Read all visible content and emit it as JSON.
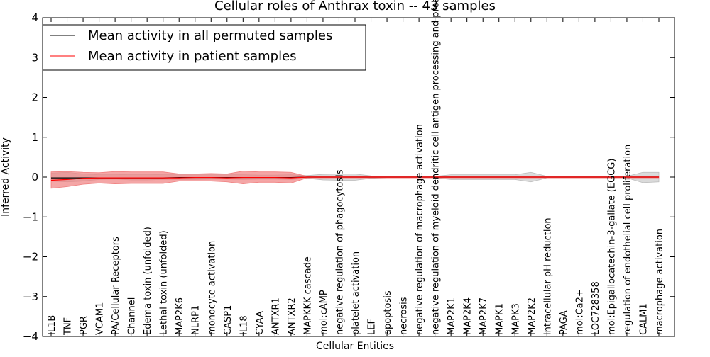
{
  "chart_data": {
    "type": "line",
    "title": "Cellular roles of Anthrax toxin -- 43 samples",
    "xlabel": "Cellular Entities",
    "ylabel": "Inferred Activity",
    "ylim": [
      -4,
      4
    ],
    "yticks": [
      -4,
      -3,
      -2,
      -1,
      0,
      1,
      2,
      3,
      4
    ],
    "ytick_labels": [
      "−4",
      "−3",
      "−2",
      "−1",
      "0",
      "1",
      "2",
      "3",
      "4"
    ],
    "grid": false,
    "legend_position": "top-left",
    "categories": [
      "IL1B",
      "TNF",
      "PGR",
      "VCAM1",
      "PA/Cellular Receptors",
      "Channel",
      "Edema toxin (unfolded)",
      "Lethal toxin (unfolded)",
      "MAP2K6",
      "NLRP1",
      "monocyte activation",
      "CASP1",
      "IL18",
      "CYAA",
      "ANTXR1",
      "ANTXR2",
      "MAPKKK cascade",
      "mol:cAMP",
      "negative regulation of phagocytosis",
      "platelet activation",
      "LEF",
      "apoptosis",
      "necrosis",
      "negative regulation of macrophage activation",
      "negative regulation of myeloid dendritic cell antigen processing and presentation",
      "MAP2K1",
      "MAP2K4",
      "MAP2K7",
      "MAPK1",
      "MAPK3",
      "MAP2K2",
      "intracellular pH reduction",
      "PAGA",
      "mol:Ca2+",
      "LOC728358",
      "mol:Epigallocatechin-3-gallate (EGCG)",
      "regulation of endothelial cell proliferation",
      "CALM1",
      "macrophage activation"
    ],
    "series": [
      {
        "name": "Mean activity in all permuted samples",
        "color": "#000000",
        "band_color": "#bbbbbb",
        "values": [
          -0.02,
          -0.02,
          -0.02,
          -0.02,
          -0.02,
          -0.02,
          -0.02,
          -0.02,
          -0.01,
          -0.01,
          -0.01,
          -0.01,
          -0.01,
          -0.01,
          -0.01,
          -0.01,
          0.0,
          0.0,
          0.0,
          0.0,
          0.0,
          0.0,
          0.0,
          0.0,
          0.0,
          0.0,
          0.0,
          0.0,
          0.0,
          0.0,
          0.0,
          0.0,
          0.0,
          0.0,
          0.0,
          0.0,
          0.0,
          0.0,
          0.0
        ],
        "band_low": [
          -0.1,
          -0.12,
          -0.1,
          -0.06,
          -0.05,
          -0.07,
          -0.07,
          -0.06,
          -0.06,
          -0.06,
          -0.05,
          -0.05,
          -0.06,
          -0.05,
          -0.05,
          -0.06,
          -0.03,
          -0.07,
          -0.08,
          -0.08,
          -0.03,
          -0.02,
          -0.02,
          -0.02,
          -0.02,
          -0.06,
          -0.06,
          -0.06,
          -0.06,
          -0.06,
          -0.12,
          -0.02,
          -0.02,
          -0.02,
          -0.02,
          -0.02,
          -0.02,
          -0.14,
          -0.12
        ],
        "band_high": [
          0.1,
          0.12,
          0.08,
          0.06,
          0.06,
          0.07,
          0.07,
          0.06,
          0.06,
          0.06,
          0.06,
          0.06,
          0.06,
          0.05,
          0.05,
          0.06,
          0.04,
          0.07,
          0.08,
          0.08,
          0.03,
          0.02,
          0.02,
          0.02,
          0.02,
          0.06,
          0.06,
          0.06,
          0.06,
          0.06,
          0.12,
          0.02,
          0.02,
          0.02,
          0.02,
          0.02,
          0.02,
          0.12,
          0.12
        ]
      },
      {
        "name": "Mean activity in patient samples",
        "color": "#ff0000",
        "band_color": "#f08080",
        "values": [
          -0.08,
          -0.06,
          -0.03,
          -0.02,
          -0.02,
          -0.02,
          -0.02,
          -0.02,
          -0.02,
          -0.01,
          -0.01,
          -0.02,
          -0.01,
          -0.01,
          -0.01,
          -0.02,
          0.0,
          0.0,
          0.0,
          0.0,
          0.0,
          0.0,
          0.0,
          0.0,
          0.0,
          0.0,
          0.0,
          0.0,
          0.0,
          0.0,
          0.0,
          0.0,
          0.0,
          0.0,
          0.0,
          0.0,
          0.0,
          0.0,
          0.0
        ],
        "band_low": [
          -0.28,
          -0.24,
          -0.18,
          -0.15,
          -0.17,
          -0.16,
          -0.16,
          -0.16,
          -0.1,
          -0.1,
          -0.1,
          -0.12,
          -0.17,
          -0.13,
          -0.13,
          -0.15,
          -0.02,
          -0.02,
          -0.02,
          -0.02,
          -0.02,
          -0.02,
          -0.02,
          -0.02,
          -0.02,
          -0.02,
          -0.02,
          -0.02,
          -0.02,
          -0.02,
          -0.02,
          -0.02,
          -0.02,
          -0.02,
          -0.02,
          -0.02,
          -0.02,
          -0.02,
          -0.02
        ],
        "band_high": [
          0.13,
          0.14,
          0.12,
          0.11,
          0.14,
          0.13,
          0.13,
          0.13,
          0.08,
          0.08,
          0.09,
          0.08,
          0.15,
          0.13,
          0.13,
          0.12,
          0.02,
          0.02,
          0.02,
          0.02,
          0.02,
          0.02,
          0.02,
          0.02,
          0.02,
          0.02,
          0.02,
          0.02,
          0.02,
          0.02,
          0.02,
          0.02,
          0.02,
          0.02,
          0.02,
          0.02,
          0.02,
          0.02,
          0.02
        ]
      }
    ]
  }
}
